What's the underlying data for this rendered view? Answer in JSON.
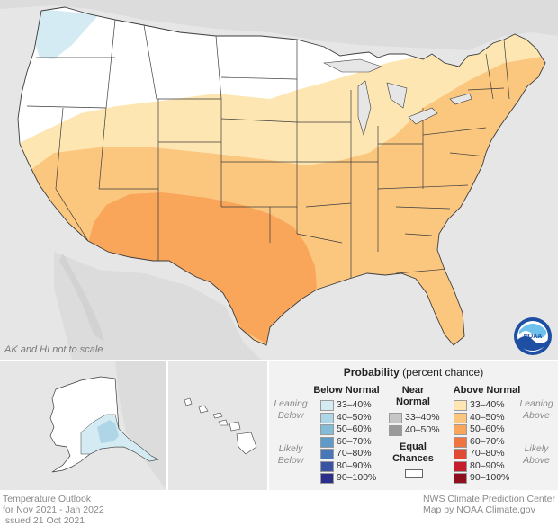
{
  "map": {
    "scale_note": "AK and HI not to scale",
    "category_colors": {
      "above_33_40": "#fde6b1",
      "above_40_50": "#fbc77f",
      "above_50_60": "#f9a55a",
      "below_33_40": "#d4ebf3",
      "equal_chances": "#ffffff"
    },
    "logo_text": "NOAA"
  },
  "legend": {
    "title_bold": "Probability",
    "title_rest": " (percent chance)",
    "below_normal": {
      "heading": "Below Normal",
      "leaning": [
        "Leaning",
        "Below"
      ],
      "likely": [
        "Likely",
        "Below"
      ],
      "items": [
        {
          "label": "33–40%",
          "color": "#d4ebf3"
        },
        {
          "label": "40–50%",
          "color": "#aed6e6"
        },
        {
          "label": "50–60%",
          "color": "#84bcd7"
        },
        {
          "label": "60–70%",
          "color": "#5f9bc8"
        },
        {
          "label": "70–80%",
          "color": "#4777b9"
        },
        {
          "label": "80–90%",
          "color": "#3a53a4"
        },
        {
          "label": "90–100%",
          "color": "#2b2e8a"
        }
      ]
    },
    "near_normal": {
      "heading": [
        "Near",
        "Normal"
      ],
      "items": [
        {
          "label": "33–40%",
          "color": "#c6c6c6"
        },
        {
          "label": "40–50%",
          "color": "#9a9a9a"
        }
      ]
    },
    "equal_chances": {
      "heading": [
        "Equal",
        "Chances"
      ],
      "color": "#ffffff"
    },
    "above_normal": {
      "heading": "Above Normal",
      "leaning": [
        "Leaning",
        "Above"
      ],
      "likely": [
        "Likely",
        "Above"
      ],
      "items": [
        {
          "label": "33–40%",
          "color": "#fde6b1"
        },
        {
          "label": "40–50%",
          "color": "#fbc77f"
        },
        {
          "label": "50–60%",
          "color": "#f9a55a"
        },
        {
          "label": "60–70%",
          "color": "#ef7440"
        },
        {
          "label": "70–80%",
          "color": "#e04a33"
        },
        {
          "label": "80–90%",
          "color": "#c41e2a"
        },
        {
          "label": "90–100%",
          "color": "#8e0f1e"
        }
      ]
    }
  },
  "footer": {
    "left": [
      "Temperature Outlook",
      "for Nov 2021 - Jan 2022",
      "Issued 21 Oct 2021"
    ],
    "right": [
      "NWS Climate Prediction Center",
      "Map by NOAA Climate.gov"
    ]
  }
}
